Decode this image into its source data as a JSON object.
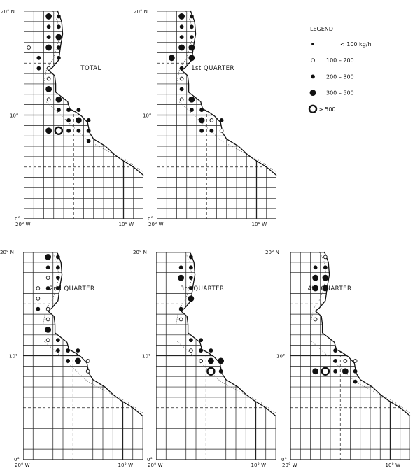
{
  "axis_labels": {
    "lat_top": "20° N",
    "lat_mid": "10°",
    "lat_bottom": "0°",
    "lon_left": "20° W",
    "lon_right": "10° W"
  },
  "legend": {
    "title": "LEGEND",
    "items": [
      {
        "class": "s",
        "label": "< 100 kg/h"
      },
      {
        "class": "o",
        "label": "100 – 200"
      },
      {
        "class": "m",
        "label": "200 – 300"
      },
      {
        "class": "l",
        "label": "300 – 500"
      },
      {
        "class": "r",
        "label": "> 500"
      }
    ]
  },
  "panels": [
    {
      "title": "TOTAL",
      "catches": [
        [
          17.5,
          19.5,
          "l"
        ],
        [
          16.5,
          19.5,
          "m"
        ],
        [
          17.5,
          18.5,
          "m"
        ],
        [
          16.5,
          18.5,
          "m"
        ],
        [
          17.5,
          17.5,
          "m"
        ],
        [
          16.5,
          17.5,
          "l"
        ],
        [
          19.5,
          16.5,
          "o"
        ],
        [
          17.5,
          16.5,
          "l"
        ],
        [
          16.5,
          16.5,
          "m"
        ],
        [
          18.5,
          15.5,
          "m"
        ],
        [
          16.5,
          15.5,
          "m"
        ],
        [
          18.5,
          14.5,
          "m"
        ],
        [
          17.5,
          14.5,
          "o"
        ],
        [
          17.5,
          13.5,
          "o"
        ],
        [
          17.5,
          12.5,
          "l"
        ],
        [
          17.5,
          11.5,
          "o"
        ],
        [
          16.5,
          11.5,
          "l"
        ],
        [
          16.5,
          10.5,
          "m"
        ],
        [
          15.5,
          10.5,
          "m"
        ],
        [
          14.5,
          10.5,
          "m"
        ],
        [
          15.5,
          9.5,
          "m"
        ],
        [
          14.5,
          9.5,
          "l"
        ],
        [
          13.5,
          9.5,
          "m"
        ],
        [
          17.5,
          8.5,
          "l"
        ],
        [
          16.5,
          8.5,
          "r"
        ],
        [
          15.5,
          8.5,
          "m"
        ],
        [
          14.5,
          8.5,
          "m"
        ],
        [
          13.5,
          8.5,
          "m"
        ],
        [
          13.5,
          7.5,
          "m"
        ]
      ]
    },
    {
      "title": "1st QUARTER",
      "catches": [
        [
          17.5,
          19.5,
          "l"
        ],
        [
          16.5,
          19.5,
          "m"
        ],
        [
          17.5,
          18.5,
          "m"
        ],
        [
          16.5,
          18.5,
          "m"
        ],
        [
          17.5,
          17.5,
          "m"
        ],
        [
          16.5,
          17.5,
          "m"
        ],
        [
          17.5,
          16.5,
          "l"
        ],
        [
          16.5,
          16.5,
          "l"
        ],
        [
          18.5,
          15.5,
          "l"
        ],
        [
          16.5,
          15.5,
          "l"
        ],
        [
          17.5,
          14.5,
          "m"
        ],
        [
          17.5,
          13.5,
          "o"
        ],
        [
          17.5,
          12.5,
          "m"
        ],
        [
          17.5,
          11.5,
          "o"
        ],
        [
          16.5,
          11.5,
          "l"
        ],
        [
          16.5,
          10.5,
          "m"
        ],
        [
          15.5,
          10.5,
          "m"
        ],
        [
          15.5,
          9.5,
          "l"
        ],
        [
          14.5,
          9.5,
          "o"
        ],
        [
          13.5,
          9.5,
          "m"
        ],
        [
          15.5,
          8.5,
          "m"
        ],
        [
          14.5,
          8.5,
          "m"
        ],
        [
          13.5,
          8.5,
          "o"
        ]
      ]
    },
    {
      "title": "2nd QUARTER",
      "catches": [
        [
          17.5,
          19.5,
          "l"
        ],
        [
          16.5,
          19.5,
          "m"
        ],
        [
          17.5,
          18.5,
          "m"
        ],
        [
          16.5,
          18.5,
          "m"
        ],
        [
          17.5,
          17.5,
          "o"
        ],
        [
          16.5,
          17.5,
          "m"
        ],
        [
          18.5,
          16.5,
          "o"
        ],
        [
          17.5,
          16.5,
          "m"
        ],
        [
          16.5,
          16.5,
          "m"
        ],
        [
          18.5,
          15.5,
          "o"
        ],
        [
          18.5,
          14.5,
          "m"
        ],
        [
          17.5,
          14.5,
          "o"
        ],
        [
          17.5,
          13.5,
          "o"
        ],
        [
          17.5,
          12.5,
          "l"
        ],
        [
          17.5,
          11.5,
          "o"
        ],
        [
          16.5,
          11.5,
          "m"
        ],
        [
          16.5,
          10.5,
          "m"
        ],
        [
          15.5,
          10.5,
          "m"
        ],
        [
          14.5,
          10.5,
          "m"
        ],
        [
          15.5,
          9.5,
          "m"
        ],
        [
          14.5,
          9.5,
          "l"
        ],
        [
          13.5,
          9.5,
          "o"
        ],
        [
          13.5,
          8.5,
          "o"
        ]
      ]
    },
    {
      "title": "3rd QUARTER",
      "catches": [
        [
          16.5,
          19.5,
          "m"
        ],
        [
          17.5,
          18.5,
          "m"
        ],
        [
          16.5,
          18.5,
          "m"
        ],
        [
          17.5,
          17.5,
          "l"
        ],
        [
          16.5,
          17.5,
          "m"
        ],
        [
          16.5,
          16.5,
          "m"
        ],
        [
          16.5,
          15.5,
          "l"
        ],
        [
          17.5,
          14.5,
          "m"
        ],
        [
          17.5,
          13.5,
          "o"
        ],
        [
          16.5,
          11.5,
          "m"
        ],
        [
          15.5,
          11.5,
          "m"
        ],
        [
          16.5,
          10.5,
          "o"
        ],
        [
          15.5,
          10.5,
          "m"
        ],
        [
          14.5,
          10.5,
          "m"
        ],
        [
          15.5,
          9.5,
          "o"
        ],
        [
          14.5,
          9.5,
          "l"
        ],
        [
          13.5,
          9.5,
          "l"
        ],
        [
          14.5,
          8.5,
          "r"
        ],
        [
          13.5,
          8.5,
          "m"
        ]
      ]
    },
    {
      "title": "4th QUARTER",
      "catches": [
        [
          16.5,
          19.5,
          "o"
        ],
        [
          17.5,
          18.5,
          "m"
        ],
        [
          16.5,
          18.5,
          "m"
        ],
        [
          17.5,
          17.5,
          "l"
        ],
        [
          16.5,
          17.5,
          "l"
        ],
        [
          17.5,
          16.5,
          "l"
        ],
        [
          16.5,
          16.5,
          "l"
        ],
        [
          17.5,
          13.5,
          "o"
        ],
        [
          15.5,
          10.5,
          "m"
        ],
        [
          15.5,
          9.5,
          "m"
        ],
        [
          14.5,
          9.5,
          "o"
        ],
        [
          13.5,
          9.5,
          "o"
        ],
        [
          17.5,
          8.5,
          "l"
        ],
        [
          16.5,
          8.5,
          "r"
        ],
        [
          15.5,
          8.5,
          "m"
        ],
        [
          14.5,
          8.5,
          "l"
        ],
        [
          13.5,
          8.5,
          "m"
        ],
        [
          13.5,
          7.5,
          "m"
        ]
      ]
    }
  ]
}
